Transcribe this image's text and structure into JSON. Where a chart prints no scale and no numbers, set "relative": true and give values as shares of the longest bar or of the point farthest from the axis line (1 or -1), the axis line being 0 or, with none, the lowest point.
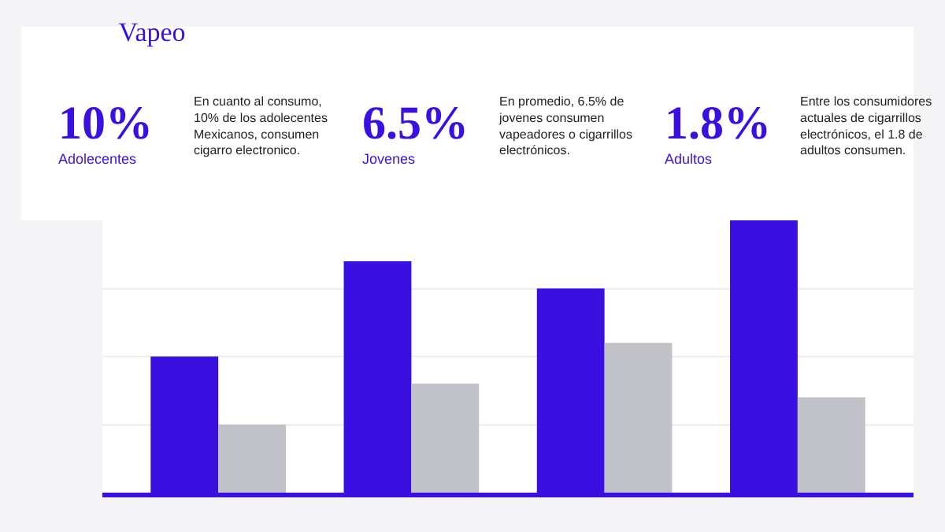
{
  "chart_data": {
    "type": "bar",
    "title": "Vapeo",
    "relative": true,
    "grid": "y",
    "categories": [
      null,
      null,
      null,
      null
    ],
    "series": [
      {
        "color": "#3a10e0",
        "values": [
          0.5,
          0.85,
          0.75,
          1
        ]
      },
      {
        "color": "#c0c2c8",
        "values": [
          0.25,
          0.4,
          0.55,
          0.35
        ]
      }
    ],
    "annotations": [
      "10%",
      "Adolecentes",
      "En cuanto al consumo, 10% de los adolecentes Mexicanos, consumen cigarro electronico.",
      "6.5%",
      "Jovenes",
      "En promedio, 6.5% de jovenes consumen vapeadores o cigarrillos electrónicos.",
      "1.8%",
      "Adultos",
      "Entre los consumidores actuales de cigarrillos electrónicos, el 1.8 de adultos consumen."
    ]
  }
}
